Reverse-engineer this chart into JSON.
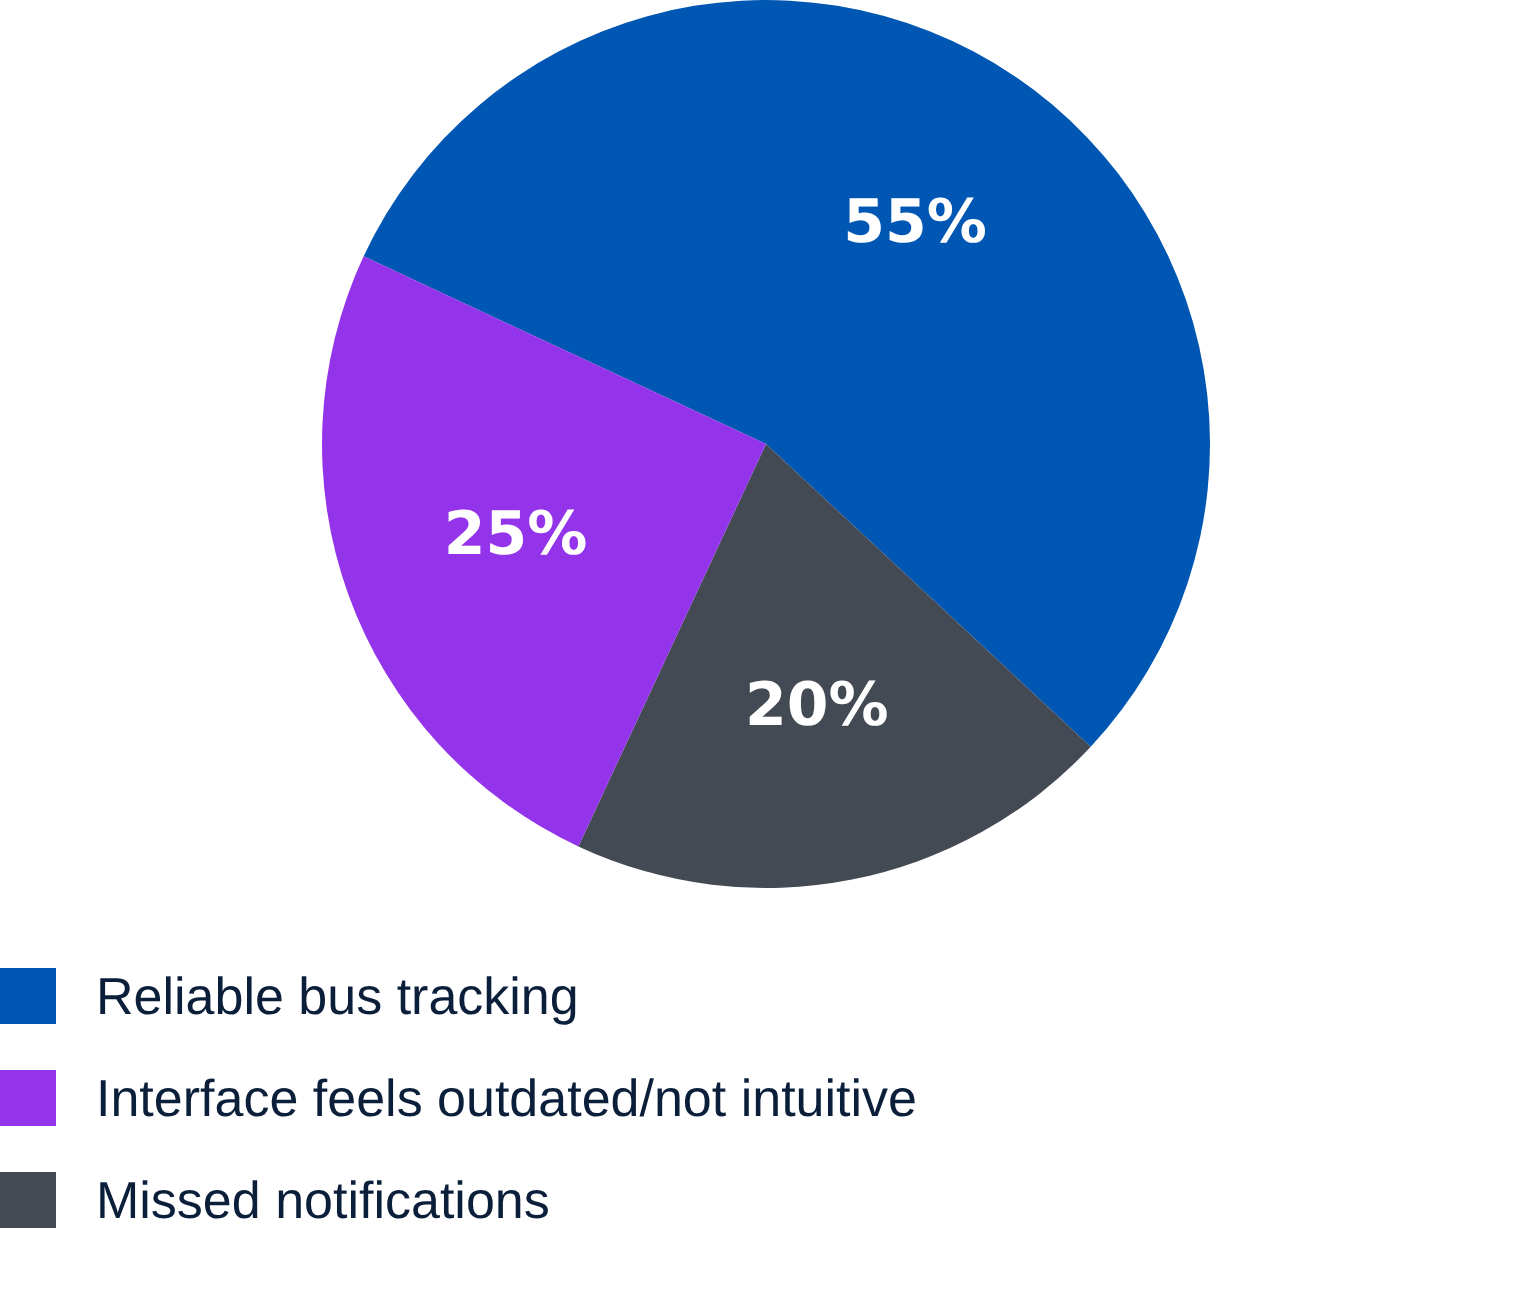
{
  "chart_data": {
    "type": "pie",
    "categories": [
      "Reliable bus tracking",
      "Interface feels outdated/not intuitive",
      "Missed notifications"
    ],
    "values": [
      55,
      25,
      20
    ],
    "colors": [
      "#0056b3",
      "#9333ea",
      "#434a54"
    ],
    "value_labels": [
      "55%",
      "25%",
      "20%"
    ],
    "legend": "bottom left"
  }
}
